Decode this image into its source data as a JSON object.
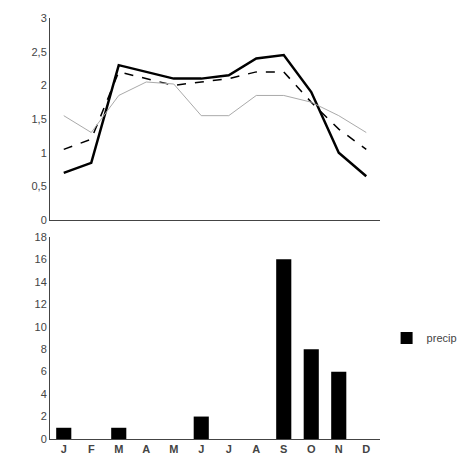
{
  "chart_data": [
    {
      "type": "line",
      "categories": [
        "J",
        "F",
        "M",
        "A",
        "M",
        "J",
        "J",
        "A",
        "S",
        "O",
        "N",
        "D"
      ],
      "series": [
        {
          "color": "#000000",
          "line_style": "solid",
          "values": [
            0.7,
            0.85,
            2.3,
            2.2,
            2.1,
            2.1,
            2.15,
            2.4,
            2.45,
            1.9,
            1.0,
            0.65
          ]
        },
        {
          "color": "#000000",
          "line_style": "dashed",
          "values": [
            1.05,
            1.2,
            2.2,
            2.1,
            2.0,
            2.05,
            2.1,
            2.2,
            2.2,
            1.75,
            1.35,
            1.05
          ]
        },
        {
          "color": "#aaaaaa",
          "line_style": "solid",
          "values": [
            1.55,
            1.3,
            1.85,
            2.05,
            2.02,
            1.55,
            1.55,
            1.85,
            1.85,
            1.75,
            1.55,
            1.3
          ]
        }
      ],
      "ylim": [
        0.0,
        3.0
      ],
      "yticks": [
        0,
        {
          "value": 0.5,
          "label": "0,5"
        },
        1,
        {
          "value": 1.5,
          "label": "1,5"
        },
        2,
        {
          "value": 2.5,
          "label": "2,5"
        },
        3
      ],
      "tick_labels": "y",
      "grid": false
    },
    {
      "type": "bar",
      "categories": [
        "J",
        "F",
        "M",
        "A",
        "M",
        "J",
        "J",
        "A",
        "S",
        "O",
        "N",
        "D"
      ],
      "series": [
        {
          "name": "precip",
          "color": "#000000",
          "values": [
            1.0,
            0,
            1.0,
            0,
            0,
            2.0,
            0,
            0,
            16.0,
            8.0,
            6.0,
            0
          ]
        }
      ],
      "ylim": [
        0,
        18
      ],
      "yticks": [
        0,
        2,
        4,
        6,
        8,
        10,
        12,
        14,
        16,
        18
      ],
      "legend": "right",
      "grid": false
    }
  ]
}
